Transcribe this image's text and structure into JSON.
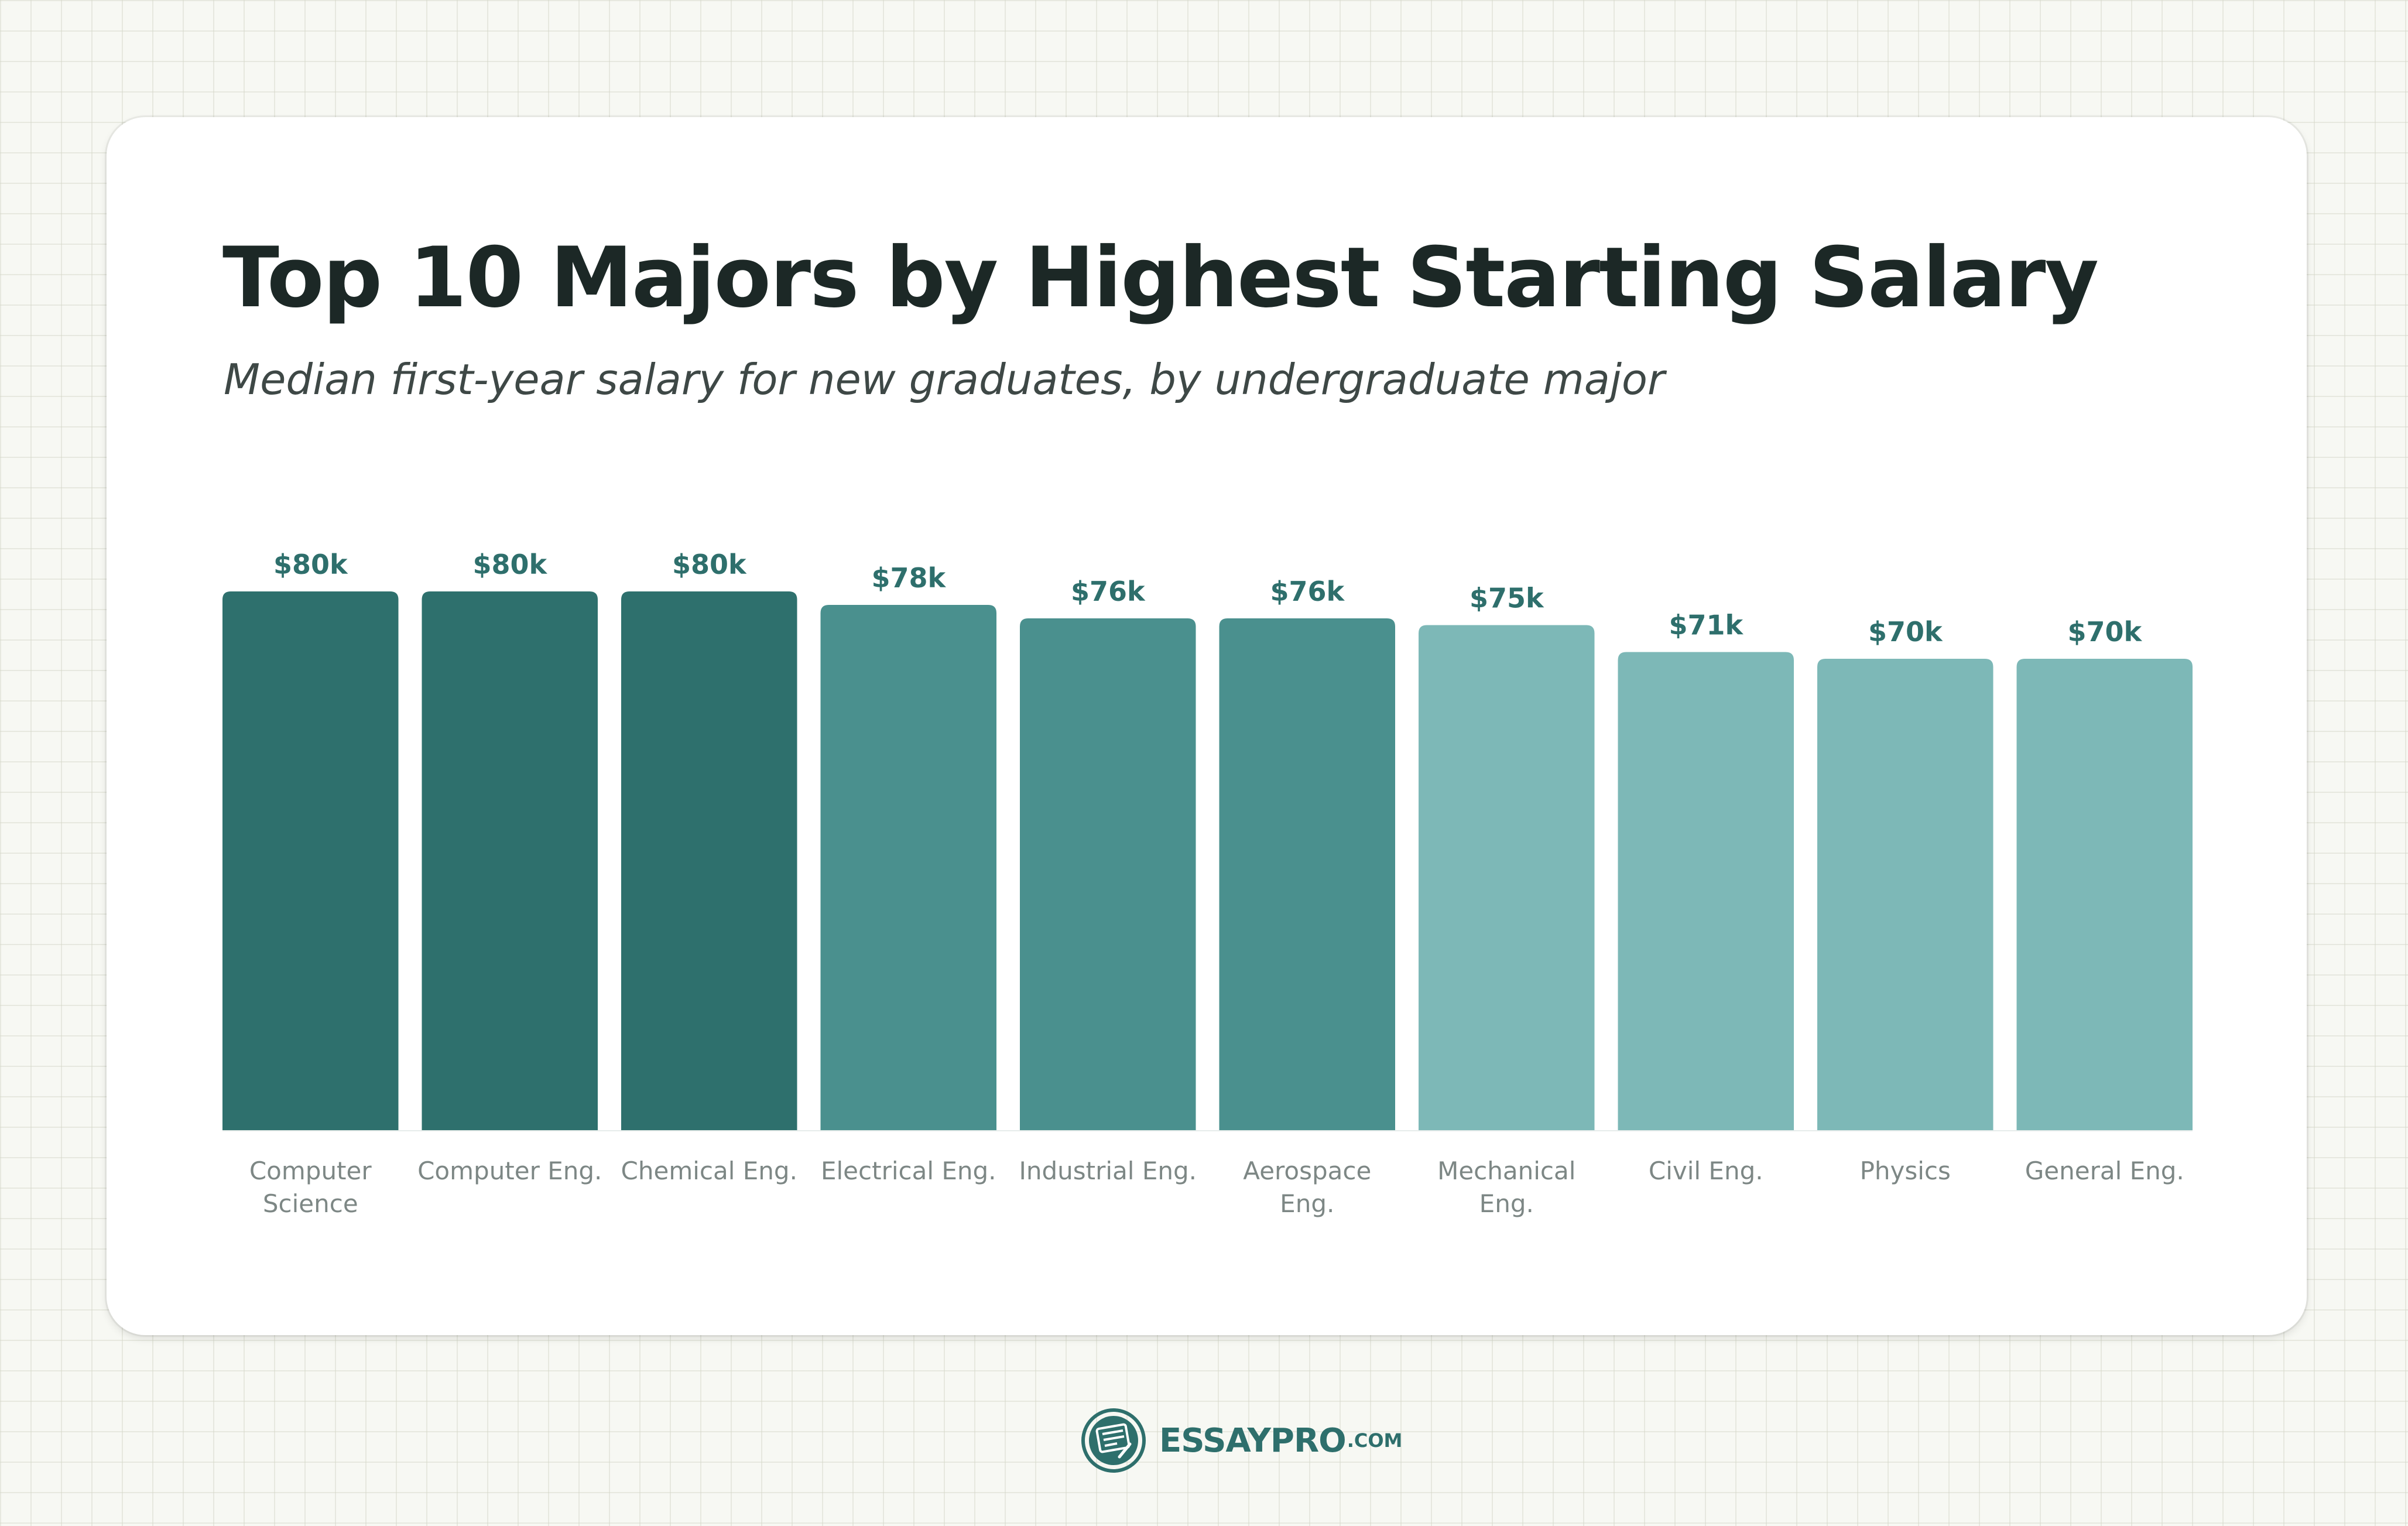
{
  "header": {
    "title": "Top 10 Majors by Highest Starting Salary",
    "subtitle": "Median first-year salary for new graduates, by undergraduate major"
  },
  "brand": {
    "name": "ESSAYPRO",
    "suffix": ".COM",
    "logo_icon": "document-pen-icon"
  },
  "colors": {
    "dark": "#2e706d",
    "mid": "#4a908e",
    "light": "#7db8b7",
    "value_label": "#2e6f6c",
    "category_label": "#7d8785"
  },
  "chart_data": {
    "type": "bar",
    "title": "Top 10 Majors by Highest Starting Salary",
    "subtitle": "Median first-year salary for new graduates, by undergraduate major",
    "xlabel": "",
    "ylabel": "",
    "ylim": [
      0,
      80
    ],
    "grid": false,
    "legend": "none",
    "categories": [
      [
        "Computer",
        "Science"
      ],
      [
        "Computer Eng."
      ],
      [
        "Chemical Eng."
      ],
      [
        "Electrical Eng."
      ],
      [
        "Industrial Eng."
      ],
      [
        "Aerospace",
        "Eng."
      ],
      [
        "Mechanical",
        "Eng."
      ],
      [
        "Civil Eng."
      ],
      [
        "Physics"
      ],
      [
        "General Eng."
      ]
    ],
    "values": [
      80,
      80,
      80,
      78,
      76,
      76,
      75,
      71,
      70,
      70
    ],
    "value_labels": [
      "$80k",
      "$80k",
      "$80k",
      "$78k",
      "$76k",
      "$76k",
      "$75k",
      "$71k",
      "$70k",
      "$70k"
    ],
    "bar_colors": [
      "dark",
      "dark",
      "dark",
      "mid",
      "mid",
      "mid",
      "light",
      "light",
      "light",
      "light"
    ]
  }
}
